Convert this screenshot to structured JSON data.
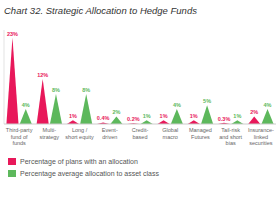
{
  "chart_data": {
    "type": "spike",
    "title": "Chart 32. Strategic Allocation to Hedge Funds",
    "categories": [
      "Third-party\nfund of\nfunds",
      "Multi-\nstrategy",
      "Long /\nshort equity",
      "Event-\ndriven",
      "Credit-\nbased",
      "Global\nmacro",
      "Managed\nFutures",
      "Tail-risk\nand short\nbias",
      "Insurance-\nlinked\nsecurities"
    ],
    "series": [
      {
        "name": "Percentage of plans with an allocation",
        "color": "#E8185A",
        "values": [
          23,
          12,
          1,
          0.4,
          0.2,
          1,
          1,
          0.3,
          2
        ],
        "value_labels": [
          "23%",
          "12%",
          "1%",
          "0.4%",
          "0.2%",
          "1%",
          "1%",
          "0.3%",
          "2%"
        ]
      },
      {
        "name": "Percentage average allocation to asset class",
        "color": "#5DB85C",
        "values": [
          4,
          8,
          8,
          2,
          1,
          4,
          5,
          1,
          4
        ],
        "value_labels": [
          "4%",
          "8%",
          "8%",
          "2%",
          "1%",
          "4%",
          "5%",
          "1%",
          "4%"
        ]
      }
    ],
    "ylim": [
      0,
      25
    ],
    "data_labels": true,
    "tick_labels": "x",
    "legend": "bottom",
    "grid": false
  }
}
